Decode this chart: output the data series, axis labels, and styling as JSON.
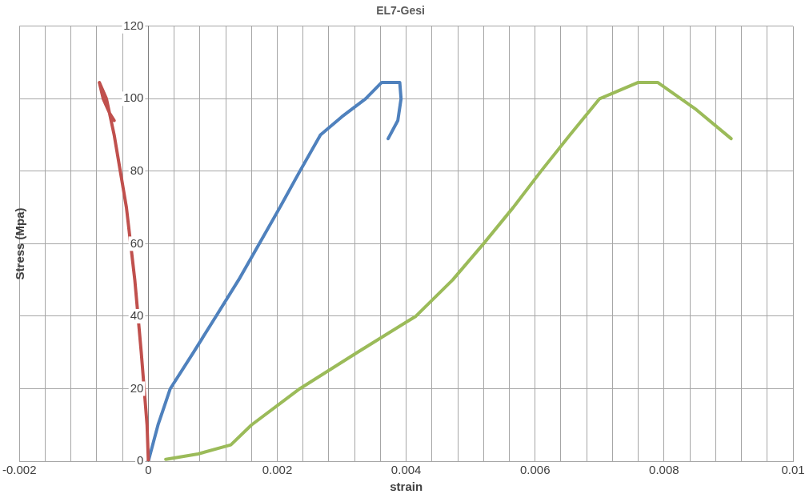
{
  "chart_data": {
    "type": "line",
    "title": "EL7-Gesi",
    "xlabel": "strain",
    "ylabel": "Stress (Mpa)",
    "xlim": [
      -0.002,
      0.01
    ],
    "xticks": [
      -0.002,
      {
        "value": -0.0016,
        "label": null
      },
      {
        "value": -0.0012,
        "label": null
      },
      {
        "value": -0.0008,
        "label": null
      },
      {
        "value": -0.0004,
        "label": null
      },
      0,
      {
        "value": 0.0004,
        "label": null
      },
      {
        "value": 0.0008,
        "label": null
      },
      {
        "value": 0.0012,
        "label": null
      },
      {
        "value": 0.0016,
        "label": null
      },
      0.002,
      {
        "value": 0.0024,
        "label": null
      },
      {
        "value": 0.0028,
        "label": null
      },
      {
        "value": 0.0032,
        "label": null
      },
      {
        "value": 0.0036,
        "label": null
      },
      0.004,
      {
        "value": 0.0044,
        "label": null
      },
      {
        "value": 0.0048,
        "label": null
      },
      {
        "value": 0.0052,
        "label": null
      },
      {
        "value": 0.0056,
        "label": null
      },
      0.006,
      {
        "value": 0.0064,
        "label": null
      },
      {
        "value": 0.0068,
        "label": null
      },
      {
        "value": 0.0072,
        "label": null
      },
      {
        "value": 0.0076,
        "label": null
      },
      0.008,
      {
        "value": 0.0084,
        "label": null
      },
      {
        "value": 0.0088,
        "label": null
      },
      {
        "value": 0.0092,
        "label": null
      },
      {
        "value": 0.0096,
        "label": null
      },
      0.01
    ],
    "ylim": [
      0,
      120
    ],
    "yticks": [
      0,
      20,
      40,
      60,
      80,
      100,
      120
    ],
    "grid": true,
    "legend": false,
    "marker": "none",
    "line_style": "solid",
    "series": [
      {
        "color": "#c0504d",
        "x": [
          0,
          -2e-05,
          -0.00011,
          -0.00021,
          -0.00034,
          -0.00053,
          -0.00065,
          -0.00076,
          -0.0007,
          -0.0006,
          -0.00053
        ],
        "values": [
          0,
          10,
          30,
          50,
          70,
          90,
          100,
          104.5,
          100,
          96,
          94
        ]
      },
      {
        "color": "#4f81bd",
        "x": [
          0,
          0.00015,
          0.00034,
          0.0007,
          0.00105,
          0.0014,
          0.00172,
          0.00204,
          0.00235,
          0.00267,
          0.003,
          0.00337,
          0.00362,
          0.0039,
          0.00392,
          0.00387,
          0.00372
        ],
        "values": [
          0,
          10,
          20,
          30,
          40,
          50,
          60,
          70,
          80,
          90,
          95,
          100,
          104.5,
          104.5,
          100,
          94,
          89
        ]
      },
      {
        "color": "#9bbb59",
        "x": [
          0.00027,
          0.00077,
          0.00128,
          0.0016,
          0.00235,
          0.00324,
          0.00415,
          0.00472,
          0.0052,
          0.00566,
          0.00609,
          0.00654,
          0.007,
          0.0076,
          0.0079,
          0.0085,
          0.00904
        ],
        "values": [
          0.5,
          2,
          4.5,
          10,
          20,
          30,
          40,
          50,
          60,
          70,
          80,
          90,
          100,
          104.5,
          104.5,
          97,
          89
        ]
      }
    ]
  }
}
